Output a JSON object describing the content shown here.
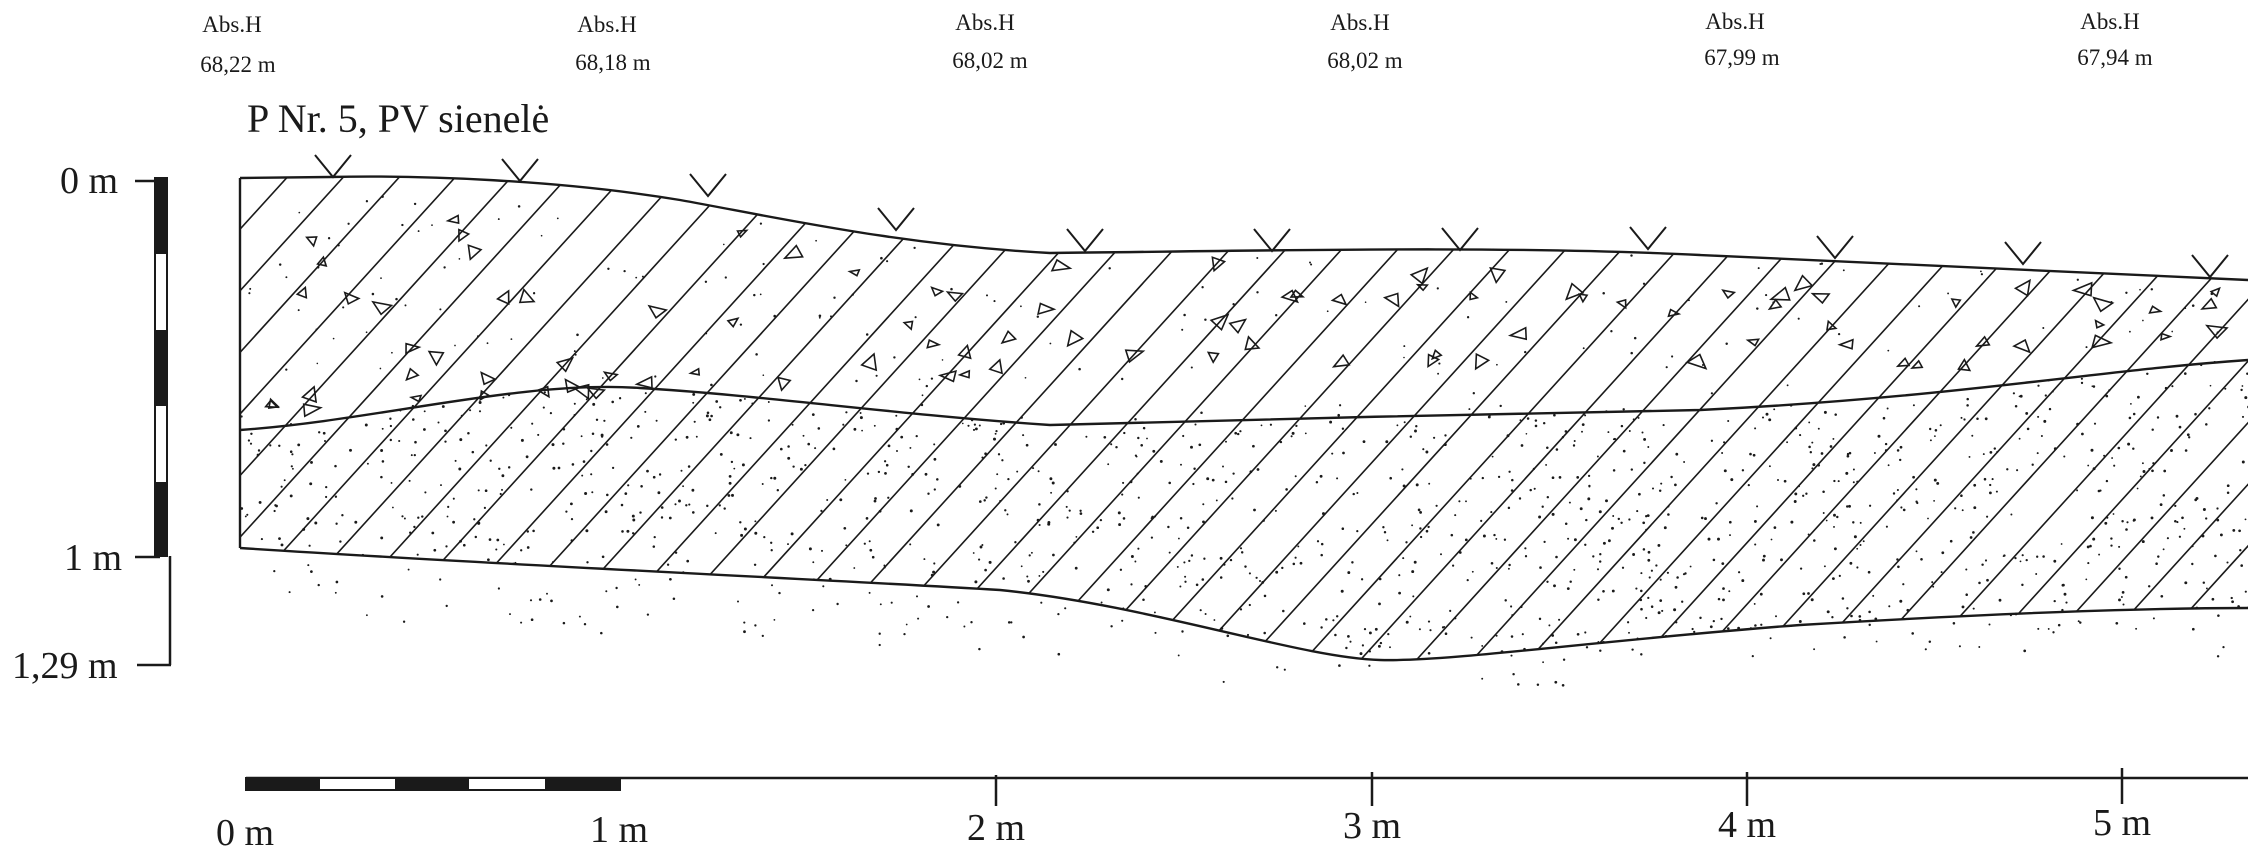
{
  "title": "P Nr. 5, PV sienelė",
  "elevations": [
    {
      "label": "Abs.H",
      "value": "68,22 m"
    },
    {
      "label": "Abs.H",
      "value": "68,18 m"
    },
    {
      "label": "Abs.H",
      "value": "68,02 m"
    },
    {
      "label": "Abs.H",
      "value": "68,02 m"
    },
    {
      "label": "Abs.H",
      "value": "67,99 m"
    },
    {
      "label": "Abs.H",
      "value": "67,94 m"
    }
  ],
  "vertical_scale": {
    "labels": [
      "0 m",
      "1 m",
      "1,29 m"
    ],
    "values": [
      0,
      1,
      1.29
    ]
  },
  "horizontal_scale": {
    "labels": [
      "0 m",
      "1 m",
      "2 m",
      "3 m",
      "4 m",
      "5 m"
    ],
    "values": [
      0,
      1,
      2,
      3,
      4,
      5
    ]
  },
  "colors": {
    "ink": "#1a1a1a",
    "paper": "#ffffff"
  }
}
